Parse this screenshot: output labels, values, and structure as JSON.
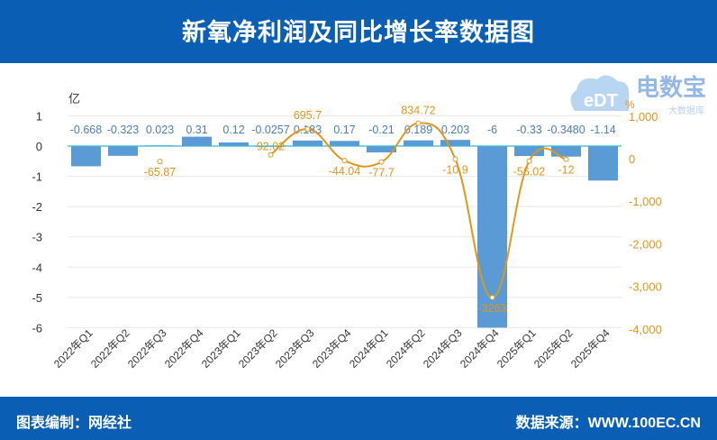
{
  "header": {
    "title": "新氧净利润及同比增长率数据图"
  },
  "footer": {
    "editor": "图表编制：网经社",
    "source": "数据来源：WWW.100EC.CN"
  },
  "logo": {
    "text": "电数宝",
    "sub": "大数据库",
    "mark": "eDT"
  },
  "chart_data": {
    "type": "bar+line",
    "title": "新氧净利润及同比增长率数据图",
    "categories": [
      "2022年Q1",
      "2022年Q2",
      "2022年Q3",
      "2022年Q4",
      "2023年Q1",
      "2023年Q2",
      "2023年Q3",
      "2023年Q4",
      "2024年Q1",
      "2024年Q2",
      "2024年Q3",
      "2024年Q4",
      "2025年Q1",
      "2025年Q2",
      "2025年Q4"
    ],
    "left_axis": {
      "unit": "亿",
      "ylim": [
        -6,
        1
      ],
      "ticks": [
        1,
        0,
        -1,
        -2,
        -3,
        -4,
        -5,
        -6
      ]
    },
    "right_axis": {
      "unit": "%",
      "ylim": [
        -4000,
        1000
      ],
      "ticks": [
        "1,000",
        "0",
        "-1,000",
        "-2,000",
        "-3,000",
        "-4,000"
      ],
      "tick_values": [
        1000,
        0,
        -1000,
        -2000,
        -3000,
        -4000
      ]
    },
    "series": [
      {
        "type": "bar",
        "axis": "left",
        "color": "#5b9bd5",
        "values": [
          -0.668,
          -0.323,
          0.023,
          0.31,
          0.12,
          -0.0257,
          0.183,
          0.17,
          -0.21,
          0.189,
          0.203,
          -6,
          -0.33,
          -0.348,
          -1.14
        ],
        "labels": [
          "-0.668",
          "-0.323",
          "0.023",
          "0.31",
          "0.12",
          "-0.0257",
          "0.183",
          "0.17",
          "-0.21",
          "0.189",
          "0.203",
          "-6",
          "-0.33",
          "-0.3480",
          "-1.14"
        ]
      },
      {
        "type": "line",
        "axis": "right",
        "color": "#e0961a",
        "values": [
          null,
          null,
          -65.87,
          null,
          null,
          92.02,
          695.7,
          -44.04,
          -77.7,
          834.72,
          -10.9,
          -3263,
          -56.02,
          -12,
          null
        ],
        "labels": [
          "",
          "",
          "-65.87",
          "",
          "",
          "92.02",
          "695.7",
          "-44.04",
          "-77.7",
          "834.72",
          "-10.9",
          "-3263",
          "-56.02",
          "-12",
          ""
        ]
      }
    ],
    "grid": true
  }
}
